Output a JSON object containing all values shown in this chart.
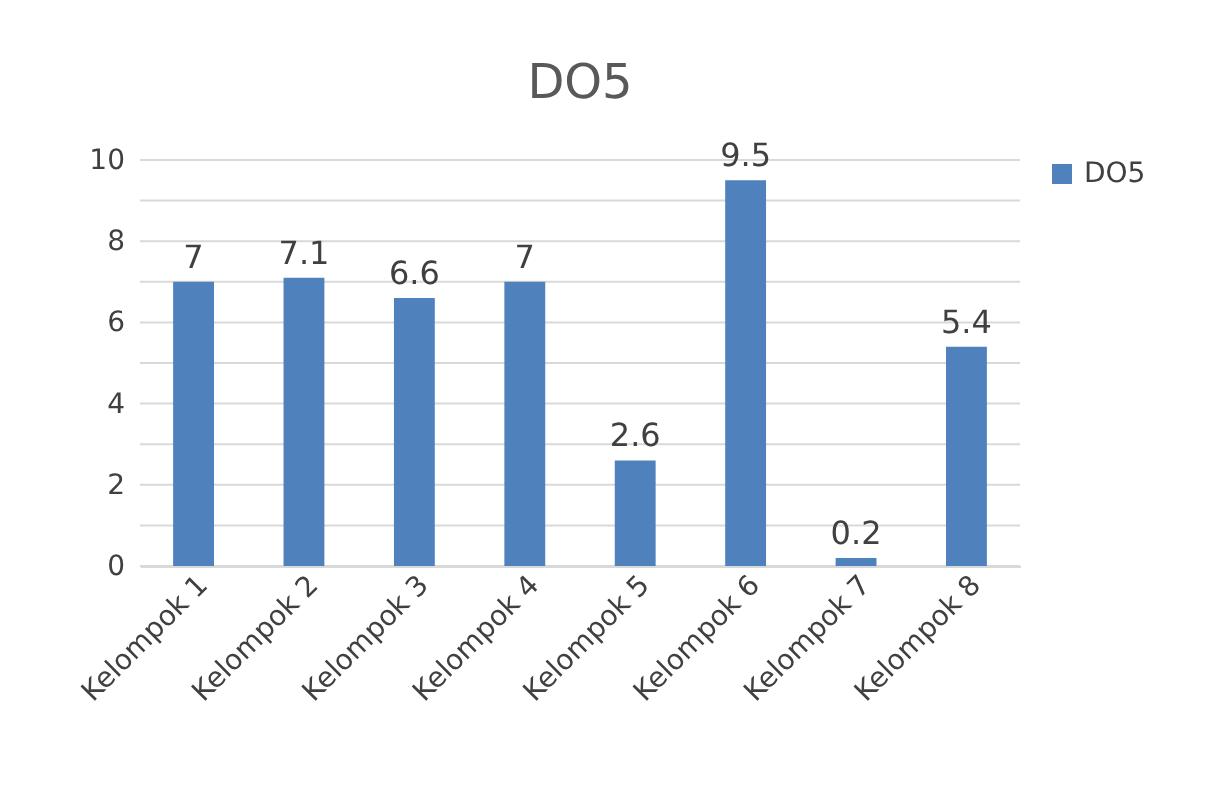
{
  "chart_data": {
    "type": "bar",
    "title": "DO5",
    "categories": [
      "Kelompok 1",
      "Kelompok 2",
      "Kelompok 3",
      "Kelompok 4",
      "Kelompok 5",
      "Kelompok 6",
      "Kelompok 7",
      "Kelompok 8"
    ],
    "series": [
      {
        "name": "DO5",
        "color": "#4f81bd",
        "values": [
          7,
          7.1,
          6.6,
          7,
          2.6,
          9.5,
          0.2,
          5.4
        ]
      }
    ],
    "ylim": [
      0,
      10
    ],
    "yticks": [
      0,
      {
        "value": 1,
        "label": null
      },
      2,
      {
        "value": 3,
        "label": null
      },
      4,
      {
        "value": 5,
        "label": null
      },
      6,
      {
        "value": 7,
        "label": null
      },
      8,
      {
        "value": 9,
        "label": null
      },
      10
    ],
    "grid": "y",
    "legend": "right",
    "data_labels": true
  }
}
